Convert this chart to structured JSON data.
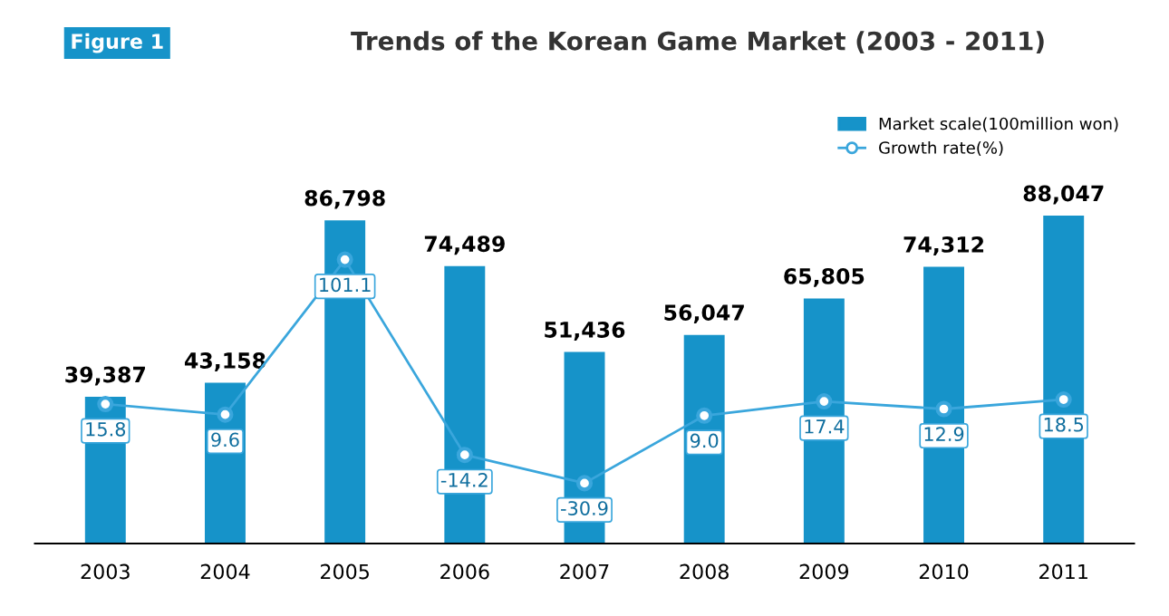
{
  "chart_data": {
    "type": "bar",
    "title": "Trends of the Korean Game Market (2003 - 2011)",
    "annotations": [
      "Figure 1"
    ],
    "categories": [
      "2003",
      "2004",
      "2005",
      "2006",
      "2007",
      "2008",
      "2009",
      "2010",
      "2011"
    ],
    "series": [
      {
        "name": "Market scale(100million won)",
        "color": "#1693c9",
        "values": [
          39387,
          43158,
          86798,
          74489,
          51436,
          56047,
          65805,
          74312,
          88047
        ],
        "value_labels": [
          "39,387",
          "43,158",
          "86,798",
          "74,489",
          "51,436",
          "56,047",
          "65,805",
          "74,312",
          "88,047"
        ]
      },
      {
        "name": "Growth rate(%)",
        "type": "line",
        "axis": "y2",
        "color": "#3aa6dc",
        "marker": "circle",
        "values": [
          15.8,
          9.6,
          101.1,
          -14.2,
          -30.9,
          9.0,
          17.4,
          12.9,
          18.5
        ],
        "value_labels": [
          "15.8",
          "9.6",
          "101.1",
          "-14.2",
          "-30.9",
          "9.0",
          "17.4",
          "12.9",
          "18.5"
        ]
      }
    ],
    "legend": "top right",
    "grid": false
  }
}
